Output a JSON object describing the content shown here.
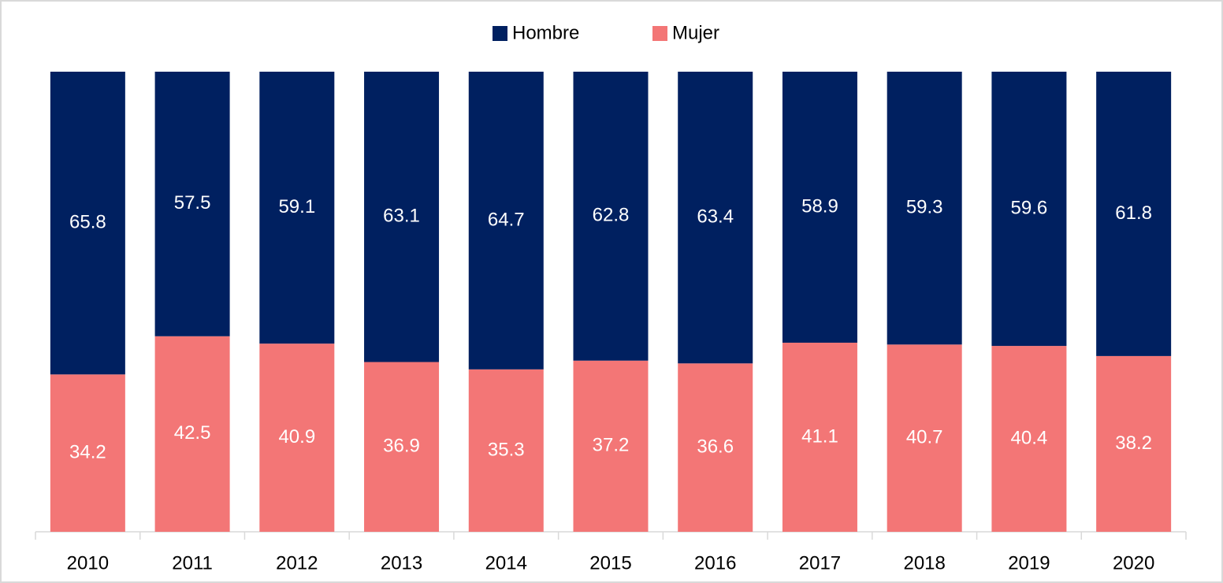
{
  "chart_data": {
    "type": "stacked_bar",
    "categories": [
      "2010",
      "2011",
      "2012",
      "2013",
      "2014",
      "2015",
      "2016",
      "2017",
      "2018",
      "2019",
      "2020"
    ],
    "series": [
      {
        "name": "Hombre",
        "color": "#002060",
        "values": [
          65.8,
          57.5,
          59.1,
          63.1,
          64.7,
          62.8,
          63.4,
          58.9,
          59.3,
          59.6,
          61.8
        ]
      },
      {
        "name": "Mujer",
        "color": "#f37676",
        "values": [
          34.2,
          42.5,
          40.9,
          36.9,
          35.3,
          37.2,
          36.6,
          41.1,
          40.7,
          40.4,
          38.2
        ]
      }
    ],
    "ylim": [
      0,
      100
    ],
    "legend": "top"
  }
}
